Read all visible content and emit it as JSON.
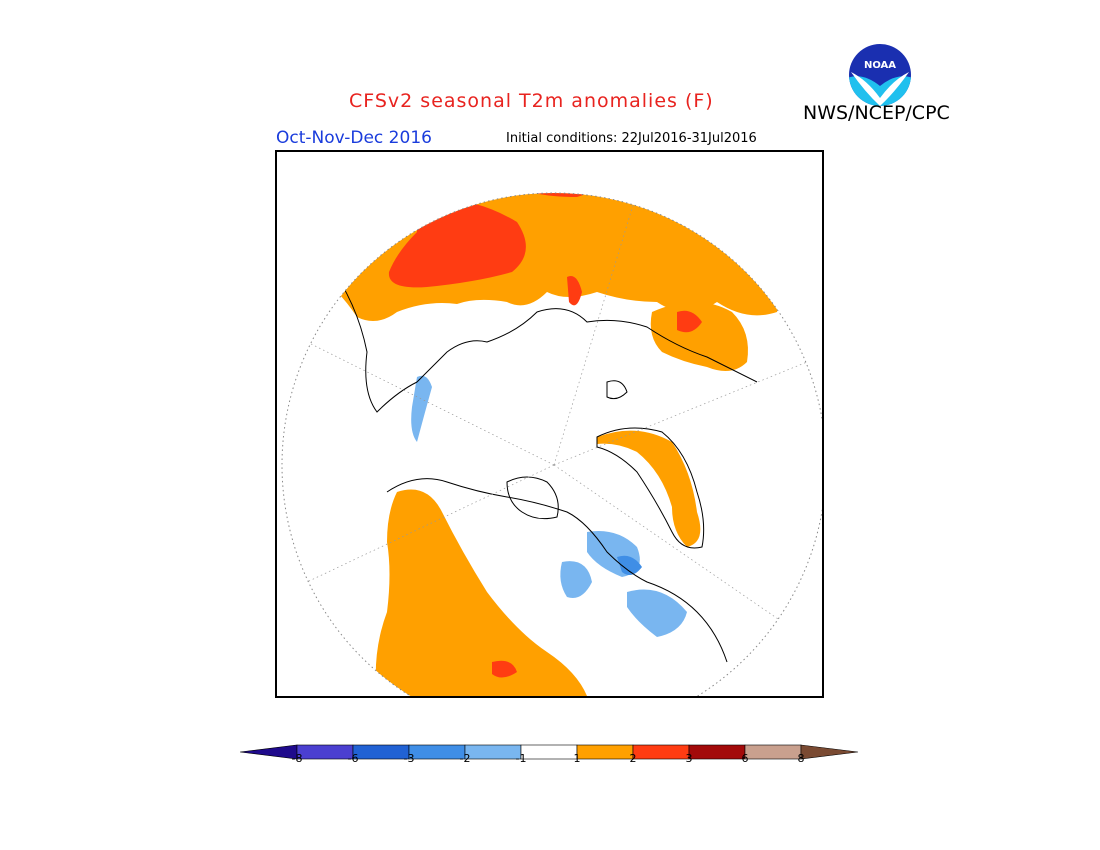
{
  "header": {
    "title": "CFSv2 seasonal T2m anomalies (F)",
    "organization": "NWS/NCEP/CPC",
    "period": "Oct-Nov-Dec 2016",
    "initial_conditions_label": "Initial conditions:",
    "initial_conditions_value": "22Jul2016-31Jul2016",
    "logo_text": "NOAA"
  },
  "map": {
    "projection": "north polar stereographic",
    "background_color": "#ffffff"
  },
  "legend": {
    "tick_labels": [
      "-8",
      "-6",
      "-3",
      "-2",
      "-1",
      "1",
      "2",
      "3",
      "6",
      "8"
    ],
    "colors": [
      "#1f0a8c",
      "#4b3fd0",
      "#2162d4",
      "#3f8ee6",
      "#79b6f0",
      "#ffffff",
      "#ffa000",
      "#ff3c12",
      "#a30a0a",
      "#c9a08e",
      "#7a4a32"
    ]
  }
}
